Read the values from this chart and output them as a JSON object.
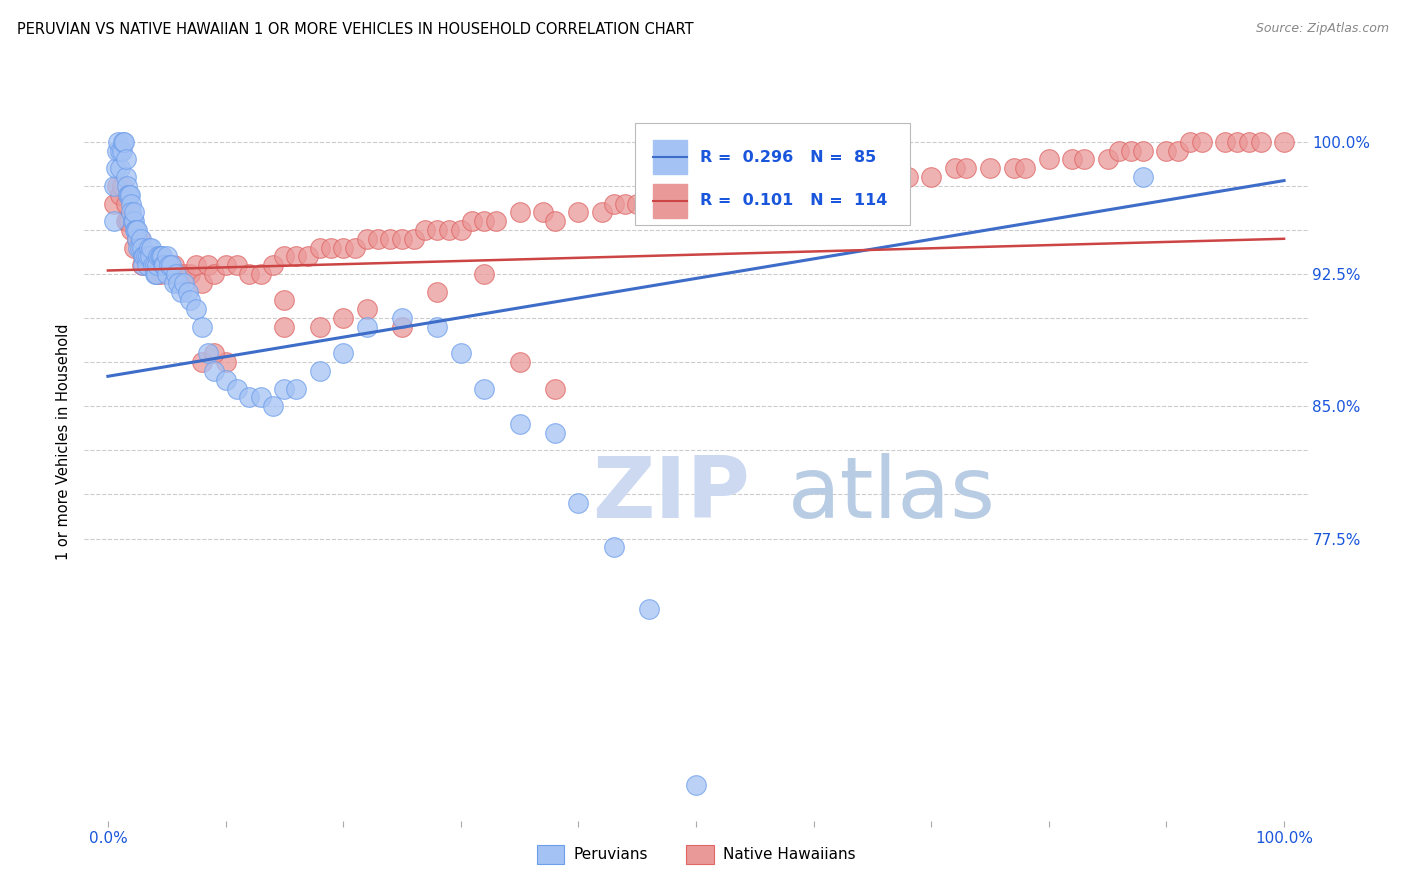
{
  "title": "PERUVIAN VS NATIVE HAWAIIAN 1 OR MORE VEHICLES IN HOUSEHOLD CORRELATION CHART",
  "source": "Source: ZipAtlas.com",
  "ylabel": "1 or more Vehicles in Household",
  "xlim": [
    -0.02,
    1.02
  ],
  "ylim": [
    0.615,
    1.045
  ],
  "blue_R": 0.296,
  "blue_N": 85,
  "pink_R": 0.101,
  "pink_N": 114,
  "blue_color": "#a4c2f4",
  "pink_color": "#ea9999",
  "blue_edge_color": "#6d9eeb",
  "pink_edge_color": "#e06666",
  "blue_line_color": "#3d6dc8",
  "pink_line_color": "#cc4444",
  "watermark_zip_color": "#d0e0f8",
  "watermark_atlas_color": "#b8cce4",
  "y_tick_vals": [
    0.775,
    0.8,
    0.825,
    0.85,
    0.875,
    0.9,
    0.925,
    0.95,
    0.975,
    1.0
  ],
  "y_tick_labels": {
    "0.775": "77.5%",
    "0.850": "85.0%",
    "0.925": "92.5%",
    "1.000": "100.0%"
  },
  "blue_x": [
    0.005,
    0.005,
    0.007,
    0.008,
    0.009,
    0.01,
    0.01,
    0.012,
    0.013,
    0.014,
    0.015,
    0.015,
    0.016,
    0.017,
    0.018,
    0.019,
    0.02,
    0.02,
    0.021,
    0.022,
    0.022,
    0.023,
    0.024,
    0.025,
    0.025,
    0.026,
    0.027,
    0.028,
    0.029,
    0.03,
    0.03,
    0.031,
    0.032,
    0.033,
    0.034,
    0.035,
    0.036,
    0.037,
    0.038,
    0.04,
    0.04,
    0.041,
    0.042,
    0.043,
    0.044,
    0.045,
    0.046,
    0.047,
    0.048,
    0.05,
    0.05,
    0.052,
    0.054,
    0.056,
    0.058,
    0.06,
    0.062,
    0.065,
    0.068,
    0.07,
    0.075,
    0.08,
    0.085,
    0.09,
    0.1,
    0.11,
    0.12,
    0.13,
    0.14,
    0.15,
    0.16,
    0.18,
    0.2,
    0.22,
    0.25,
    0.28,
    0.3,
    0.32,
    0.35,
    0.38,
    0.4,
    0.43,
    0.46,
    0.5,
    0.88
  ],
  "blue_y": [
    0.955,
    0.975,
    0.985,
    0.995,
    1.0,
    0.985,
    0.995,
    0.995,
    1.0,
    1.0,
    0.98,
    0.99,
    0.975,
    0.97,
    0.97,
    0.97,
    0.965,
    0.96,
    0.955,
    0.955,
    0.96,
    0.95,
    0.95,
    0.945,
    0.95,
    0.94,
    0.94,
    0.945,
    0.94,
    0.935,
    0.93,
    0.935,
    0.935,
    0.93,
    0.935,
    0.94,
    0.935,
    0.94,
    0.93,
    0.93,
    0.925,
    0.925,
    0.93,
    0.935,
    0.935,
    0.935,
    0.935,
    0.93,
    0.93,
    0.925,
    0.935,
    0.93,
    0.93,
    0.92,
    0.925,
    0.92,
    0.915,
    0.92,
    0.915,
    0.91,
    0.905,
    0.895,
    0.88,
    0.87,
    0.865,
    0.86,
    0.855,
    0.855,
    0.85,
    0.86,
    0.86,
    0.87,
    0.88,
    0.895,
    0.9,
    0.895,
    0.88,
    0.86,
    0.84,
    0.835,
    0.795,
    0.77,
    0.735,
    0.635,
    0.98
  ],
  "pink_x": [
    0.005,
    0.008,
    0.01,
    0.012,
    0.015,
    0.015,
    0.016,
    0.018,
    0.02,
    0.022,
    0.025,
    0.027,
    0.029,
    0.03,
    0.032,
    0.035,
    0.038,
    0.04,
    0.042,
    0.045,
    0.048,
    0.05,
    0.053,
    0.056,
    0.06,
    0.065,
    0.07,
    0.075,
    0.08,
    0.085,
    0.09,
    0.1,
    0.11,
    0.12,
    0.13,
    0.14,
    0.15,
    0.16,
    0.17,
    0.18,
    0.19,
    0.2,
    0.21,
    0.22,
    0.23,
    0.24,
    0.25,
    0.26,
    0.27,
    0.28,
    0.29,
    0.3,
    0.31,
    0.32,
    0.33,
    0.35,
    0.37,
    0.38,
    0.4,
    0.42,
    0.43,
    0.44,
    0.45,
    0.47,
    0.48,
    0.49,
    0.5,
    0.52,
    0.53,
    0.55,
    0.56,
    0.57,
    0.58,
    0.6,
    0.62,
    0.63,
    0.65,
    0.67,
    0.68,
    0.7,
    0.72,
    0.73,
    0.75,
    0.77,
    0.78,
    0.8,
    0.82,
    0.83,
    0.85,
    0.86,
    0.87,
    0.88,
    0.9,
    0.91,
    0.92,
    0.93,
    0.95,
    0.96,
    0.97,
    0.98,
    1.0,
    0.15,
    0.2,
    0.25,
    0.35,
    0.38,
    0.1,
    0.08,
    0.09,
    0.15,
    0.18,
    0.22,
    0.28,
    0.32
  ],
  "pink_y": [
    0.965,
    0.975,
    0.97,
    0.975,
    0.955,
    0.965,
    0.955,
    0.955,
    0.95,
    0.94,
    0.945,
    0.945,
    0.93,
    0.935,
    0.935,
    0.935,
    0.935,
    0.93,
    0.925,
    0.925,
    0.93,
    0.93,
    0.925,
    0.93,
    0.925,
    0.925,
    0.925,
    0.93,
    0.92,
    0.93,
    0.925,
    0.93,
    0.93,
    0.925,
    0.925,
    0.93,
    0.935,
    0.935,
    0.935,
    0.94,
    0.94,
    0.94,
    0.94,
    0.945,
    0.945,
    0.945,
    0.945,
    0.945,
    0.95,
    0.95,
    0.95,
    0.95,
    0.955,
    0.955,
    0.955,
    0.96,
    0.96,
    0.955,
    0.96,
    0.96,
    0.965,
    0.965,
    0.965,
    0.965,
    0.965,
    0.965,
    0.965,
    0.97,
    0.97,
    0.97,
    0.97,
    0.975,
    0.975,
    0.975,
    0.975,
    0.975,
    0.98,
    0.98,
    0.98,
    0.98,
    0.985,
    0.985,
    0.985,
    0.985,
    0.985,
    0.99,
    0.99,
    0.99,
    0.99,
    0.995,
    0.995,
    0.995,
    0.995,
    0.995,
    1.0,
    1.0,
    1.0,
    1.0,
    1.0,
    1.0,
    1.0,
    0.91,
    0.9,
    0.895,
    0.875,
    0.86,
    0.875,
    0.875,
    0.88,
    0.895,
    0.895,
    0.905,
    0.915,
    0.925
  ],
  "blue_trend": [
    0.867,
    0.978
  ],
  "pink_trend": [
    0.927,
    0.945
  ]
}
